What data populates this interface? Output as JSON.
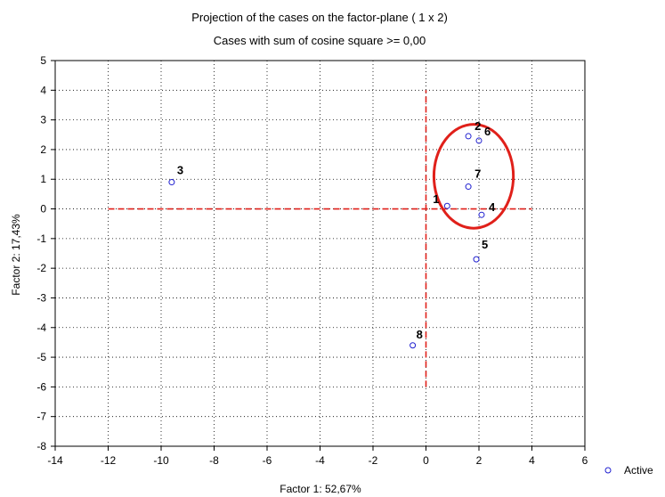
{
  "chart_data": {
    "type": "scatter",
    "title": "Projection of the cases on the factor-plane (  1 x   2)",
    "subtitle": "Cases with sum of cosine square >= 0,00",
    "xlabel": "Factor 1: 52,67%",
    "ylabel": "Factor 2: 17,43%",
    "xlim": [
      -14,
      6
    ],
    "ylim": [
      -8,
      5
    ],
    "xticks": [
      -14,
      -12,
      -10,
      -8,
      -6,
      -4,
      -2,
      0,
      2,
      4,
      6
    ],
    "yticks": [
      -8,
      -7,
      -6,
      -5,
      -4,
      -3,
      -2,
      -1,
      0,
      1,
      2,
      3,
      4,
      5
    ],
    "grid": true,
    "legend_position": "bottom-right",
    "series": [
      {
        "name": "Active",
        "color": "#1f1fd0",
        "marker": "open-circle",
        "points": [
          {
            "label": "1",
            "x": 0.8,
            "y": 0.1
          },
          {
            "label": "2",
            "x": 1.6,
            "y": 2.45
          },
          {
            "label": "3",
            "x": -9.6,
            "y": 0.9
          },
          {
            "label": "4",
            "x": 2.1,
            "y": -0.2
          },
          {
            "label": "5",
            "x": 1.9,
            "y": -1.7
          },
          {
            "label": "6",
            "x": 2.0,
            "y": 2.3
          },
          {
            "label": "7",
            "x": 1.6,
            "y": 0.75
          },
          {
            "label": "8",
            "x": -0.5,
            "y": -4.6
          }
        ]
      }
    ],
    "reference_lines": {
      "color": "#e0201a",
      "horizontal": {
        "y": 0,
        "x_from": -12,
        "x_to": 4
      },
      "vertical": {
        "x": 0,
        "y_from": -6,
        "y_to": 4
      }
    },
    "annotation_ellipse": {
      "cx": 1.8,
      "cy": 1.1,
      "rx": 1.5,
      "ry": 1.75,
      "color": "#e0201a"
    }
  }
}
